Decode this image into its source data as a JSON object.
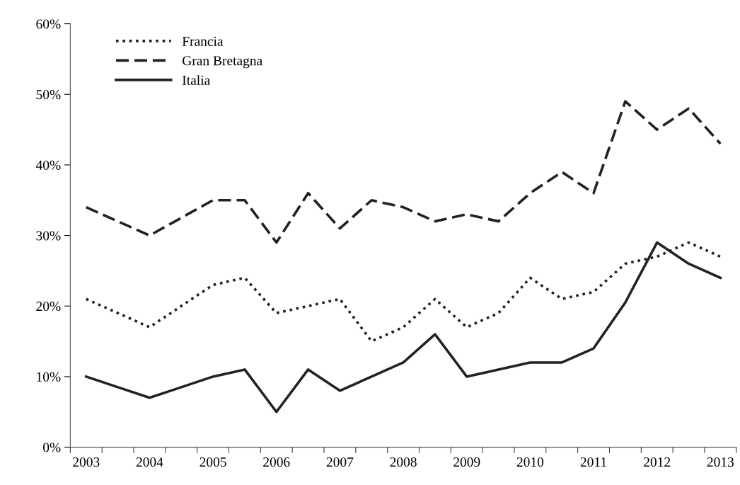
{
  "chart_data": {
    "type": "line",
    "categories": [
      "2003",
      null,
      "2004",
      null,
      "2005",
      null,
      "2006",
      null,
      "2007",
      null,
      "2008",
      null,
      "2009",
      null,
      "2010",
      null,
      "2011",
      null,
      "2012",
      null,
      "2013"
    ],
    "series": [
      {
        "name": "Francia",
        "color": "#222222",
        "line_style": "dotted",
        "values": [
          21,
          19,
          17,
          20,
          23,
          24,
          19,
          20,
          21,
          15,
          17,
          21,
          17,
          19,
          24,
          21,
          22,
          26,
          27,
          29,
          27
        ]
      },
      {
        "name": "Gran Bretagna",
        "color": "#222222",
        "line_style": "dashed",
        "values": [
          34,
          32,
          30,
          32.5,
          35,
          35,
          29,
          36,
          31,
          35,
          34,
          32,
          33,
          32,
          36,
          39,
          36,
          49,
          45,
          48,
          43
        ]
      },
      {
        "name": "Italia",
        "color": "#222222",
        "line_style": "solid",
        "values": [
          10,
          8.5,
          7,
          8.5,
          10,
          11,
          5,
          11,
          8,
          10,
          12,
          16,
          10,
          11,
          12,
          12,
          14,
          20.5,
          29,
          26,
          24
        ]
      }
    ],
    "ylim": [
      0,
      60
    ],
    "yticks": [
      {
        "value": 0,
        "label": "0%"
      },
      {
        "value": 10,
        "label": "10%"
      },
      {
        "value": 20,
        "label": "20%"
      },
      {
        "value": 30,
        "label": "30%"
      },
      {
        "value": 40,
        "label": "40%"
      },
      {
        "value": 50,
        "label": "50%"
      },
      {
        "value": 60,
        "label": "60%"
      }
    ],
    "legend": "top left",
    "grid": false
  }
}
